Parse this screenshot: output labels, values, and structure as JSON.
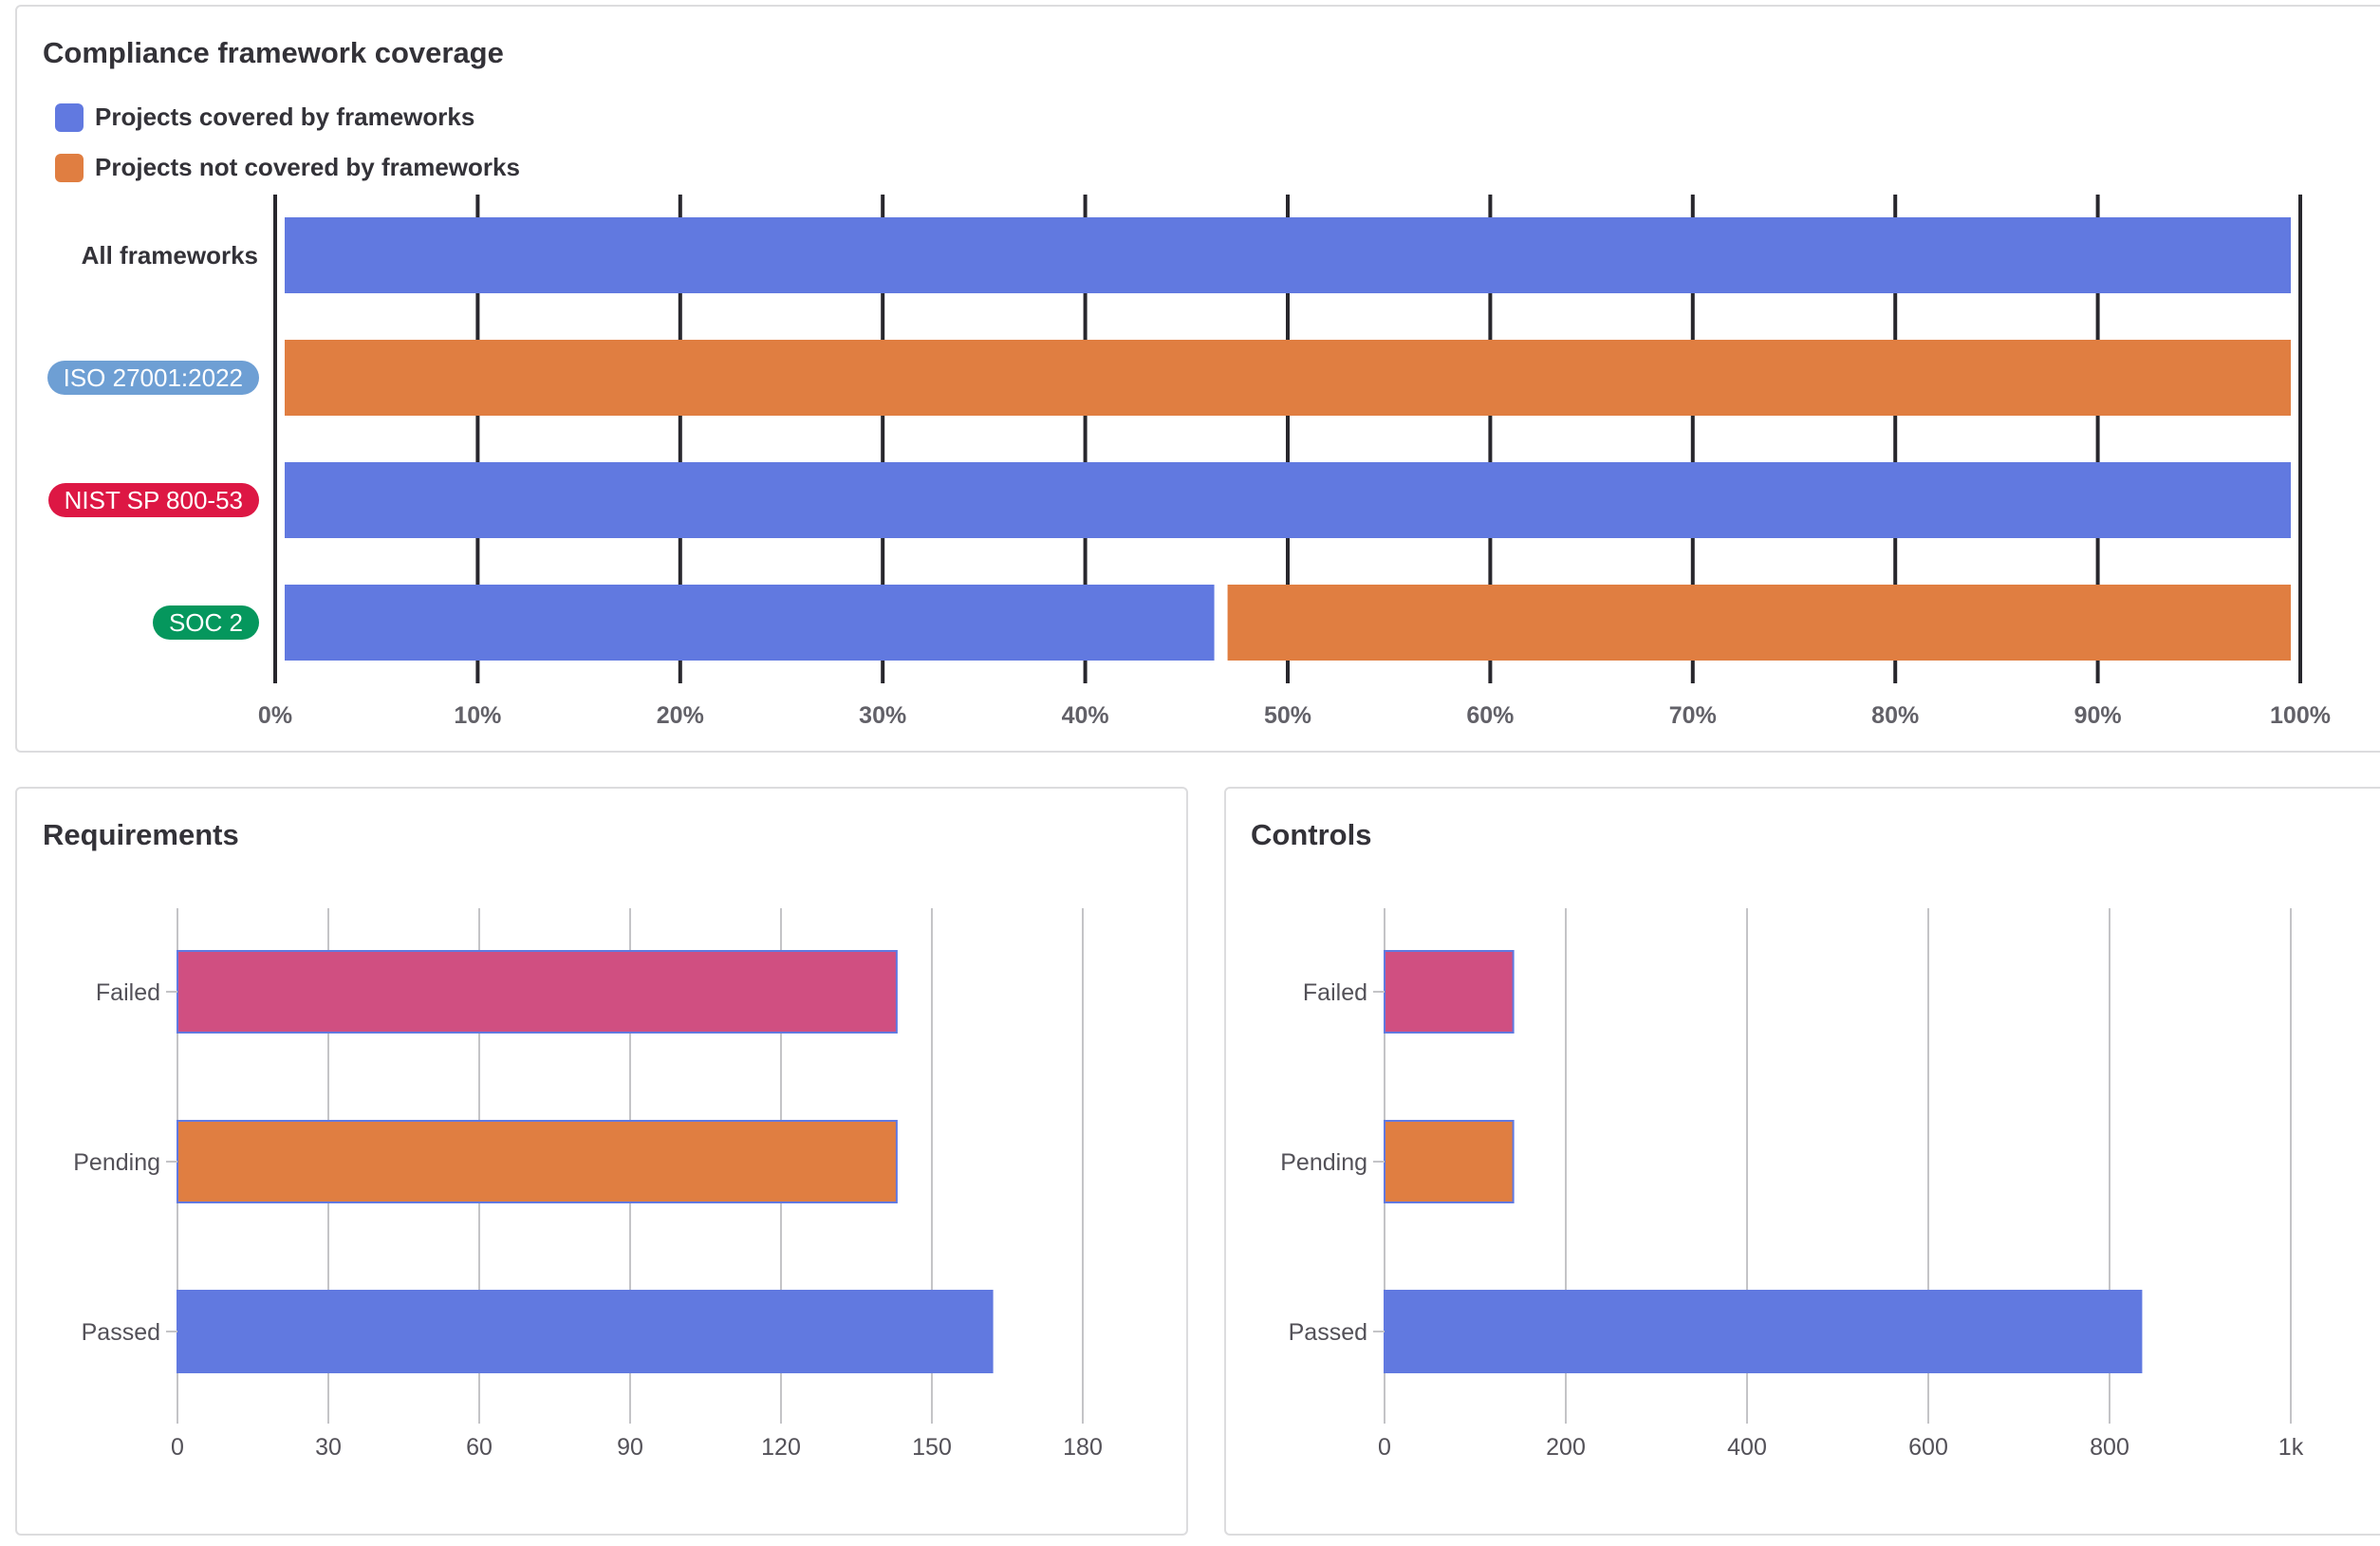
{
  "colors": {
    "covered": "#6179e0",
    "not_covered": "#e07e41",
    "failed": "#d04f81",
    "pending": "#e07e41",
    "passed": "#6179e0"
  },
  "chart_data": [
    {
      "type": "bar",
      "orientation": "horizontal",
      "stacked": true,
      "title": "Compliance framework coverage",
      "categories": [
        "All frameworks",
        "ISO 27001:2022",
        "NIST SP 800-53",
        "SOC 2"
      ],
      "category_badge_colors": [
        null,
        "#6e9fd4",
        "#dd1744",
        "#05975d"
      ],
      "series": [
        {
          "name": "Projects covered by frameworks",
          "color": "#6179e0",
          "values": [
            100,
            0,
            100,
            46.7
          ]
        },
        {
          "name": "Projects not covered by frameworks",
          "color": "#e07e41",
          "values": [
            0,
            100,
            0,
            53.3
          ]
        }
      ],
      "xlim": [
        0,
        100
      ],
      "x_ticks": [
        "0%",
        "10%",
        "20%",
        "30%",
        "40%",
        "50%",
        "60%",
        "70%",
        "80%",
        "90%",
        "100%"
      ],
      "legend": "top-left",
      "grid": true
    },
    {
      "type": "bar",
      "orientation": "horizontal",
      "title": "Requirements",
      "categories": [
        "Failed",
        "Pending",
        "Passed"
      ],
      "values": [
        143,
        143,
        162
      ],
      "colors": [
        "#d04f81",
        "#e07e41",
        "#6179e0"
      ],
      "xlim": [
        0,
        180
      ],
      "x_ticks": [
        "0",
        "30",
        "60",
        "90",
        "120",
        "150",
        "180"
      ],
      "grid": true
    },
    {
      "type": "bar",
      "orientation": "horizontal",
      "title": "Controls",
      "categories": [
        "Failed",
        "Pending",
        "Passed"
      ],
      "values": [
        142,
        142,
        835
      ],
      "colors": [
        "#d04f81",
        "#e07e41",
        "#6179e0"
      ],
      "xlim": [
        0,
        1000
      ],
      "x_ticks": [
        "0",
        "200",
        "400",
        "600",
        "800",
        "1k"
      ],
      "grid": true
    }
  ]
}
